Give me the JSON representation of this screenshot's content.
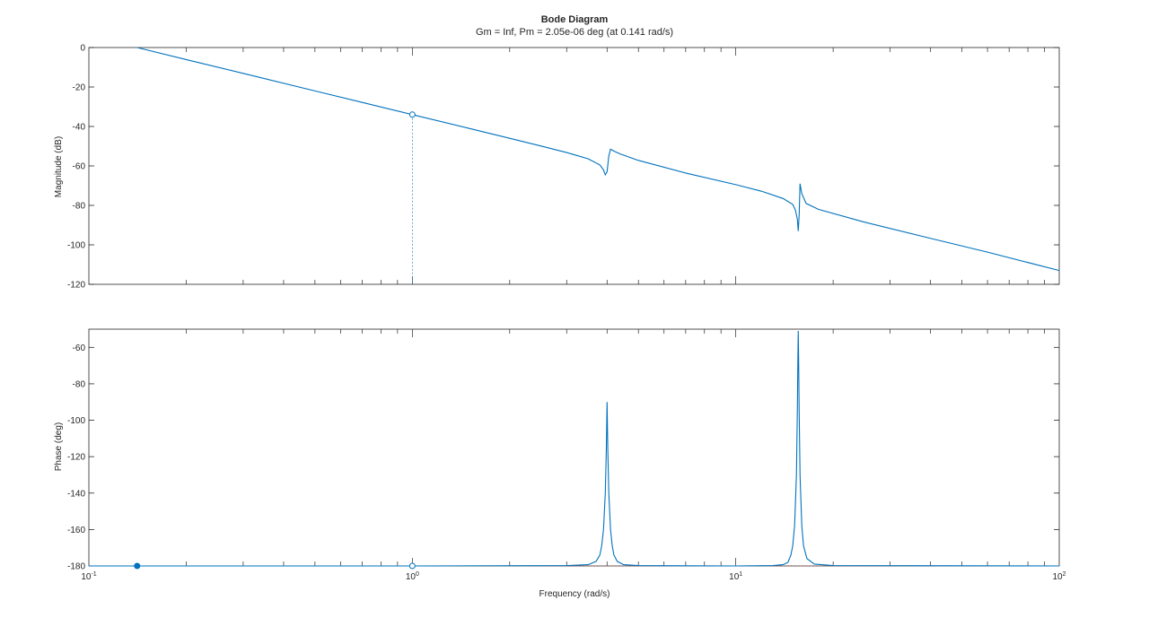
{
  "chart_data": {
    "type": "line",
    "title": "Bode Diagram",
    "subtitle": "Gm = Inf,  Pm = 2.05e-06 deg (at 0.141 rad/s)",
    "xlabel": "Frequency (rad/s)",
    "xscale": "log",
    "xlim": [
      0.1,
      100
    ],
    "x_ticks": [
      {
        "value": 0.1,
        "base": "10",
        "exp": "-1"
      },
      {
        "value": 1,
        "base": "10",
        "exp": "0"
      },
      {
        "value": 10,
        "base": "10",
        "exp": "1"
      },
      {
        "value": 100,
        "base": "10",
        "exp": "2"
      }
    ],
    "line_color": "#0072bd",
    "grid": false,
    "panels": [
      {
        "name": "magnitude",
        "ylabel": "Magnitude (dB)",
        "ylim": [
          -120,
          0
        ],
        "yticks": [
          0,
          -20,
          -40,
          -60,
          -80,
          -100,
          -120
        ],
        "series": [
          {
            "x": [
              0.141,
              0.2,
              0.3,
              0.5,
              0.7,
              1.0,
              1.5,
              2.0,
              2.5,
              3.0,
              3.5,
              3.8,
              3.9,
              3.95,
              4.0,
              4.05,
              4.1,
              4.2,
              4.4,
              5.0,
              7.0,
              10.0,
              12.0,
              14.0,
              15.0,
              15.3,
              15.5,
              15.6,
              15.7,
              15.8,
              16.0,
              16.5,
              18.0,
              25.0,
              40.0,
              60.0,
              100.0
            ],
            "y": [
              0,
              -6.1,
              -13.1,
              -22.0,
              -27.8,
              -34.0,
              -41.0,
              -46.0,
              -49.9,
              -53.2,
              -56.4,
              -59.5,
              -62.0,
              -64.5,
              -63.0,
              -55.0,
              -51.5,
              -52.5,
              -54.0,
              -57.2,
              -63.6,
              -69.5,
              -72.8,
              -76.5,
              -79.5,
              -82.5,
              -87.0,
              -93.0,
              -85.0,
              -69.0,
              -74.0,
              -79.0,
              -82.0,
              -88.5,
              -96.7,
              -103.7,
              -113.0
            ]
          }
        ],
        "markers": [
          {
            "x": 1.0,
            "y": -34.0,
            "filled": false
          }
        ]
      },
      {
        "name": "phase",
        "ylabel": "Phase (deg)",
        "ylim": [
          -180,
          -50
        ],
        "yticks": [
          -60,
          -80,
          -100,
          -120,
          -140,
          -160,
          -180
        ],
        "series": [
          {
            "x": [
              0.1,
              1.0,
              3.0,
              3.5,
              3.7,
              3.8,
              3.85,
              3.9,
              3.95,
              3.98,
              4.0,
              4.02,
              4.05,
              4.1,
              4.15,
              4.2,
              4.3,
              4.5,
              5.0,
              10.0,
              13.0,
              14.0,
              14.5,
              14.8,
              15.0,
              15.2,
              15.4,
              15.5,
              15.55,
              15.6,
              15.65,
              15.7,
              15.8,
              16.0,
              16.2,
              16.6,
              17.5,
              20.0,
              100.0
            ],
            "y": [
              -180,
              -180,
              -179.8,
              -179.3,
              -177.5,
              -174.0,
              -169.0,
              -160.0,
              -140.0,
              -115.0,
              -90.0,
              -115.0,
              -140.0,
              -160.0,
              -169.0,
              -174.0,
              -177.5,
              -179.3,
              -179.8,
              -180.0,
              -179.8,
              -179.3,
              -178.0,
              -174.0,
              -169.0,
              -158.0,
              -130.0,
              -95.0,
              -70.0,
              -51.0,
              -70.0,
              -95.0,
              -130.0,
              -158.0,
              -169.0,
              -176.0,
              -179.0,
              -179.8,
              -180.0
            ]
          }
        ],
        "markers": [
          {
            "x": 0.141,
            "y": -180,
            "filled": true
          },
          {
            "x": 1.0,
            "y": -180,
            "filled": false
          }
        ]
      }
    ]
  }
}
